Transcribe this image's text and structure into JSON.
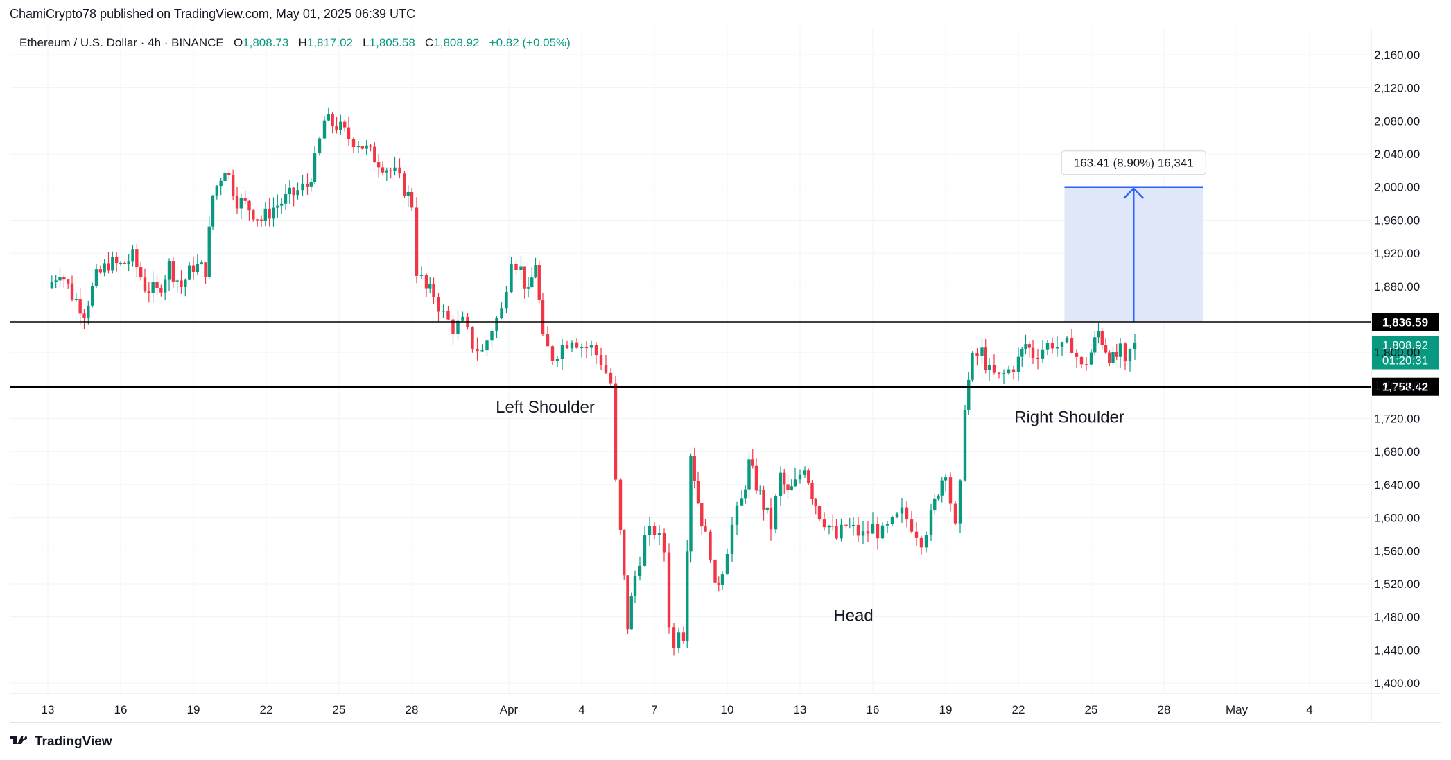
{
  "header": {
    "published": "ChamiCrypto78 published on TradingView.com, May 01, 2025 06:39 UTC"
  },
  "legend": {
    "symbol": "Ethereum / U.S. Dollar · 4h · BINANCE",
    "o_label": "O",
    "o_value": "1,808.73",
    "h_label": "H",
    "h_value": "1,817.02",
    "l_label": "L",
    "l_value": "1,805.58",
    "c_label": "C",
    "c_value": "1,808.92",
    "change": "+0.82 (+0.05%)"
  },
  "footer": {
    "brand": "TradingView"
  },
  "colors": {
    "up": "#089981",
    "down": "#f23645",
    "box_fill": "#dbe3f7",
    "box_line": "#2962ff",
    "level_line": "#000000",
    "current_line": "#089981"
  },
  "chart_data": {
    "type": "candlestick",
    "symbol": "ETHUSD",
    "interval": "4h",
    "exchange": "BINANCE",
    "ylim": [
      1380,
      2180
    ],
    "y_ticks": [
      "2,160.00",
      "2,120.00",
      "2,080.00",
      "2,040.00",
      "2,000.00",
      "1,960.00",
      "1,920.00",
      "1,880.00",
      "1,800.00",
      "1,760.00",
      "1,720.00",
      "1,680.00",
      "1,640.00",
      "1,600.00",
      "1,560.00",
      "1,520.00",
      "1,480.00",
      "1,440.00",
      "1,400.00"
    ],
    "x_ticks": [
      "13",
      "16",
      "19",
      "22",
      "25",
      "28",
      "Apr",
      "4",
      "7",
      "10",
      "13",
      "16",
      "19",
      "22",
      "25",
      "28",
      "May",
      "4"
    ],
    "x_tick_positions_day_index": [
      0,
      3,
      6,
      9,
      12,
      15,
      19,
      22,
      25,
      28,
      31,
      34,
      37,
      40,
      43,
      46,
      49,
      52
    ],
    "closes_path": [
      [
        0.0,
        1878
      ],
      [
        0.5,
        1900
      ],
      [
        1.0,
        1870
      ],
      [
        1.5,
        1850
      ],
      [
        2.0,
        1890
      ],
      [
        2.5,
        1908
      ],
      [
        3.0,
        1905
      ],
      [
        3.5,
        1915
      ],
      [
        4.0,
        1880
      ],
      [
        4.5,
        1872
      ],
      [
        5.0,
        1905
      ],
      [
        5.5,
        1880
      ],
      [
        6.0,
        1905
      ],
      [
        6.5,
        1900
      ],
      [
        6.8,
        1990
      ],
      [
        7.3,
        2025
      ],
      [
        7.8,
        1985
      ],
      [
        8.3,
        1975
      ],
      [
        8.8,
        1960
      ],
      [
        9.3,
        1975
      ],
      [
        9.8,
        1985
      ],
      [
        10.3,
        1995
      ],
      [
        10.7,
        2002
      ],
      [
        11.0,
        2030
      ],
      [
        11.4,
        2080
      ],
      [
        11.9,
        2075
      ],
      [
        12.4,
        2060
      ],
      [
        12.8,
        2055
      ],
      [
        13.3,
        2040
      ],
      [
        13.8,
        2028
      ],
      [
        14.3,
        2015
      ],
      [
        14.7,
        1998
      ],
      [
        15.0,
        1980
      ],
      [
        15.2,
        1900
      ],
      [
        15.6,
        1875
      ],
      [
        15.9,
        1870
      ],
      [
        16.3,
        1845
      ],
      [
        16.7,
        1830
      ],
      [
        17.1,
        1835
      ],
      [
        17.5,
        1810
      ],
      [
        17.9,
        1800
      ],
      [
        18.3,
        1830
      ],
      [
        18.7,
        1850
      ],
      [
        19.1,
        1918
      ],
      [
        19.5,
        1900
      ],
      [
        19.8,
        1868
      ],
      [
        20.1,
        1910
      ],
      [
        20.4,
        1812
      ],
      [
        20.8,
        1795
      ],
      [
        21.2,
        1808
      ],
      [
        21.6,
        1820
      ],
      [
        22.0,
        1808
      ],
      [
        22.4,
        1805
      ],
      [
        22.8,
        1790
      ],
      [
        23.2,
        1762
      ],
      [
        23.4,
        1640
      ],
      [
        23.6,
        1580
      ],
      [
        23.9,
        1470
      ],
      [
        24.2,
        1530
      ],
      [
        24.6,
        1575
      ],
      [
        25.0,
        1585
      ],
      [
        25.4,
        1560
      ],
      [
        25.6,
        1475
      ],
      [
        25.8,
        1440
      ],
      [
        26.0,
        1470
      ],
      [
        26.2,
        1460
      ],
      [
        26.5,
        1680
      ],
      [
        26.8,
        1620
      ],
      [
        27.1,
        1575
      ],
      [
        27.3,
        1560
      ],
      [
        27.5,
        1510
      ],
      [
        27.8,
        1540
      ],
      [
        28.2,
        1590
      ],
      [
        28.6,
        1620
      ],
      [
        28.9,
        1665
      ],
      [
        29.2,
        1640
      ],
      [
        29.5,
        1615
      ],
      [
        29.8,
        1590
      ],
      [
        30.2,
        1650
      ],
      [
        30.5,
        1628
      ],
      [
        30.8,
        1640
      ],
      [
        31.2,
        1665
      ],
      [
        31.5,
        1630
      ],
      [
        31.8,
        1605
      ],
      [
        32.2,
        1590
      ],
      [
        32.5,
        1575
      ],
      [
        32.9,
        1590
      ],
      [
        33.2,
        1585
      ],
      [
        33.6,
        1578
      ],
      [
        34.0,
        1588
      ],
      [
        34.4,
        1580
      ],
      [
        34.8,
        1592
      ],
      [
        35.2,
        1605
      ],
      [
        35.6,
        1592
      ],
      [
        36.0,
        1575
      ],
      [
        36.4,
        1600
      ],
      [
        36.7,
        1635
      ],
      [
        37.0,
        1660
      ],
      [
        37.2,
        1620
      ],
      [
        37.4,
        1585
      ],
      [
        37.6,
        1635
      ],
      [
        37.8,
        1740
      ],
      [
        38.1,
        1790
      ],
      [
        38.5,
        1800
      ],
      [
        38.8,
        1775
      ],
      [
        39.2,
        1768
      ],
      [
        39.6,
        1778
      ],
      [
        40.0,
        1790
      ],
      [
        40.3,
        1810
      ],
      [
        40.6,
        1798
      ],
      [
        41.0,
        1805
      ],
      [
        41.4,
        1812
      ],
      [
        41.8,
        1803
      ],
      [
        42.2,
        1810
      ],
      [
        42.6,
        1780
      ],
      [
        43.0,
        1800
      ],
      [
        43.3,
        1825
      ],
      [
        43.6,
        1805
      ],
      [
        43.9,
        1790
      ],
      [
        44.2,
        1800
      ],
      [
        44.4,
        1780
      ],
      [
        44.6,
        1800
      ],
      [
        44.8,
        1808
      ]
    ],
    "levels": [
      {
        "label": "1,836.59",
        "value": 1836.59
      },
      {
        "label": "1,758.42",
        "value": 1758.42
      }
    ],
    "current_price": {
      "label": "1,808.92",
      "value": 1808.92,
      "countdown": "01:20:31"
    },
    "measure_box": {
      "from": 1836.59,
      "to": 2000.0,
      "x_start": 41.9,
      "x_end": 47.6,
      "label": "163.41 (8.90%) 16,341"
    },
    "annotations": [
      {
        "text": "Left Shoulder",
        "at_day": 20.5,
        "at_price": 1727
      },
      {
        "text": "Head",
        "at_day": 33.2,
        "at_price": 1475
      },
      {
        "text": "Right Shoulder",
        "at_day": 42.1,
        "at_price": 1715
      }
    ]
  }
}
